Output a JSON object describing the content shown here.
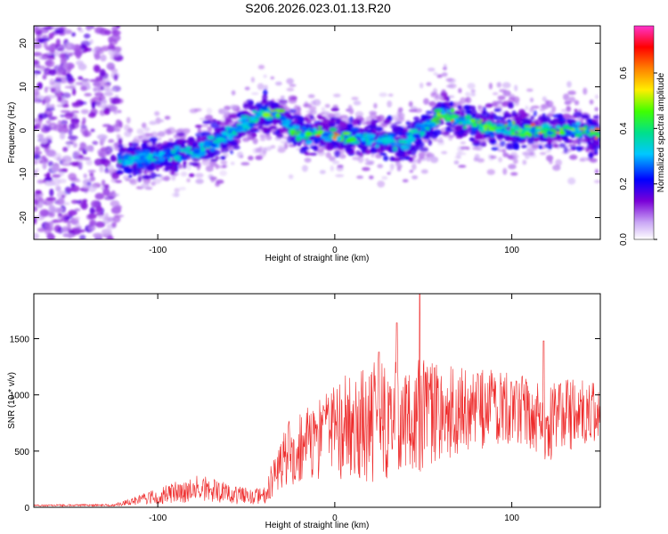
{
  "title": "S206.2026.023.01.13.R20",
  "chart_data": [
    {
      "type": "heatmap",
      "title": "S206.2026.023.01.13.R20",
      "xlabel": "Height of straight line (km)",
      "ylabel": "Frequency (Hz)",
      "xlim": [
        -170,
        150
      ],
      "ylim": [
        -25,
        24
      ],
      "x_ticks": [
        -100,
        0,
        100
      ],
      "x_tick_labels": [
        "-100",
        "0",
        "100"
      ],
      "y_ticks": [
        20,
        10,
        0,
        -10,
        -20
      ],
      "y_tick_labels": [
        "20",
        "10",
        "0",
        "-10",
        "-20"
      ],
      "ridge": {
        "x": [
          -120,
          -100,
          -80,
          -60,
          -40,
          -30,
          -20,
          -10,
          0,
          20,
          40,
          55,
          60,
          80,
          100,
          120,
          140,
          150
        ],
        "freq_hz": [
          -7,
          -6,
          -5,
          -1,
          4,
          3,
          -1,
          -1,
          -1,
          -2,
          -3,
          2,
          4,
          1,
          0,
          0,
          0,
          -1
        ]
      },
      "colorbar": {
        "label": "Normalized spectral amplitude",
        "range": [
          0.0,
          0.77
        ],
        "ticks": [
          0.0,
          0.2,
          0.4,
          0.6
        ],
        "tick_labels": [
          "0.0",
          "0.2",
          "0.4",
          "0.6"
        ],
        "colors": [
          "#ffffff",
          "#7a00d8",
          "#0000ff",
          "#00c8ff",
          "#00e08a",
          "#40ff00",
          "#ffee00",
          "#ff8000",
          "#ff0000",
          "#ff1a8c",
          "#ff33cc"
        ]
      }
    },
    {
      "type": "line",
      "xlabel": "Height of straight line (km)",
      "ylabel": "SNR (10 * v/v)",
      "xlim": [
        -170,
        150
      ],
      "ylim": [
        0,
        1900
      ],
      "x_ticks": [
        -100,
        0,
        100
      ],
      "x_tick_labels": [
        "-100",
        "0",
        "100"
      ],
      "y_ticks": [
        0,
        500,
        1000,
        1500
      ],
      "y_tick_labels": [
        "0",
        "500",
        "1000",
        "1500"
      ],
      "color": "#ee2b2b",
      "series": [
        {
          "name": "SNR",
          "x": [
            -170,
            -150,
            -125,
            -112,
            -100,
            -85,
            -75,
            -60,
            -50,
            -40,
            -35,
            -30,
            -25,
            -20,
            -15,
            -10,
            -5,
            0,
            5,
            10,
            15,
            20,
            30,
            40,
            50,
            60,
            70,
            80,
            90,
            100,
            110,
            115,
            120,
            125,
            130,
            140,
            150
          ],
          "center": [
            15,
            18,
            20,
            60,
            100,
            150,
            170,
            120,
            100,
            90,
            250,
            420,
            500,
            530,
            550,
            600,
            650,
            680,
            700,
            720,
            740,
            760,
            780,
            800,
            820,
            840,
            850,
            860,
            860,
            850,
            850,
            800,
            700,
            800,
            820,
            830,
            840
          ],
          "spread": [
            8,
            8,
            10,
            40,
            70,
            110,
            120,
            90,
            80,
            80,
            180,
            250,
            300,
            330,
            350,
            380,
            420,
            450,
            480,
            500,
            520,
            540,
            520,
            520,
            500,
            420,
            400,
            380,
            360,
            340,
            330,
            330,
            350,
            330,
            320,
            300,
            280
          ]
        }
      ],
      "peaks": [
        {
          "x": 48,
          "y": 1900
        },
        {
          "x": 35,
          "y": 1640
        },
        {
          "x": 25,
          "y": 1380
        },
        {
          "x": 118,
          "y": 1480
        }
      ]
    }
  ]
}
